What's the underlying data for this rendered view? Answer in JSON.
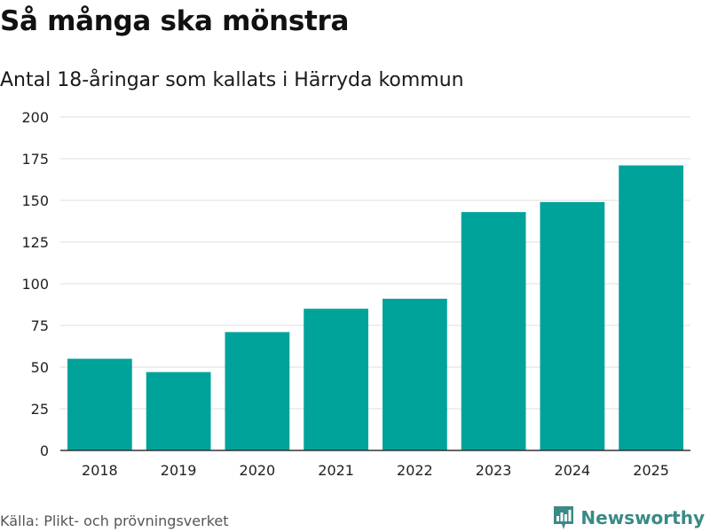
{
  "header": {
    "title": "Så många ska mönstra",
    "subtitle": "Antal 18-åringar som kallats i Härryda kommun"
  },
  "footer": {
    "source": "Källa: Plikt- och prövningsverket",
    "brand": "Newsworthy",
    "brand_icon": "bar-chart-logo-icon"
  },
  "colors": {
    "bar": "#00a39a",
    "grid": "#dddddd",
    "axis": "#333333",
    "brand": "#3a8a85"
  },
  "chart_data": {
    "type": "bar",
    "title": "Så många ska mönstra",
    "subtitle": "Antal 18-åringar som kallats i Härryda kommun",
    "xlabel": "",
    "ylabel": "",
    "categories": [
      "2018",
      "2019",
      "2020",
      "2021",
      "2022",
      "2023",
      "2024",
      "2025"
    ],
    "values": [
      55,
      47,
      71,
      85,
      91,
      143,
      149,
      171
    ],
    "ylim": [
      0,
      200
    ],
    "yticks": [
      0,
      25,
      50,
      75,
      100,
      125,
      150,
      175,
      200
    ],
    "grid": true,
    "legend": "none"
  }
}
